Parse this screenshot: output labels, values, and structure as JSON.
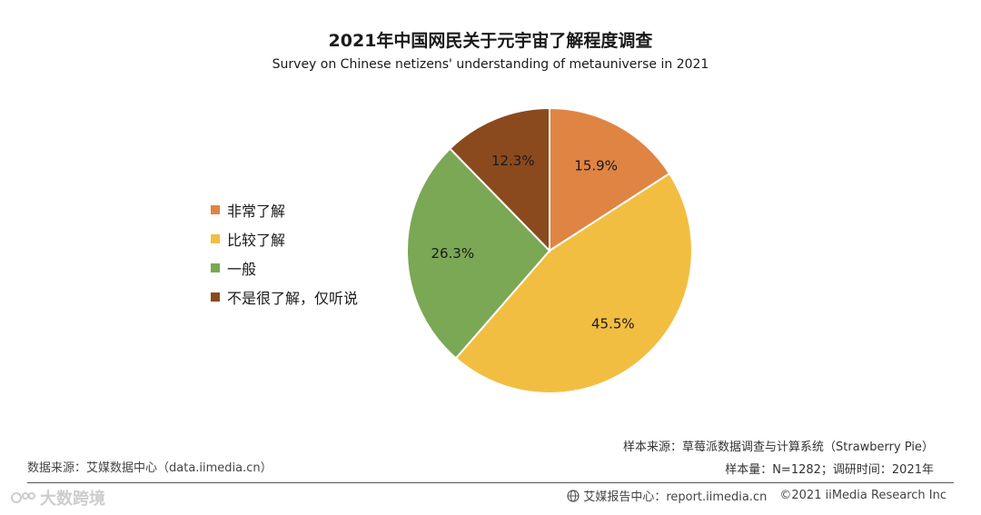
{
  "header": {
    "title": "2021年中国网民关于元宇宙了解程度调查",
    "subtitle": "Survey on Chinese netizens' understanding of metauniverse in 2021"
  },
  "chart_data": {
    "type": "pie",
    "title": "2021年中国网民关于元宇宙了解程度调查",
    "subtitle": "Survey on Chinese netizens' understanding of metauniverse in 2021",
    "legend_position": "left",
    "slices": [
      {
        "name": "非常了解",
        "value": 15.9,
        "label": "15.9%",
        "color": "#E08444"
      },
      {
        "name": "比较了解",
        "value": 45.5,
        "label": "45.5%",
        "color": "#F2BE42"
      },
      {
        "name": "一般",
        "value": 26.3,
        "label": "26.3%",
        "color": "#7BA854"
      },
      {
        "name": "不是很了解，仅听说",
        "value": 12.3,
        "label": "12.3%",
        "color": "#8B4A1E"
      }
    ]
  },
  "notes": {
    "sample_source": "样本来源：草莓派数据调查与计算系统（Strawberry Pie）",
    "sample_size": "样本量：N=1282；调研时间：2021年",
    "data_source": "数据来源：艾媒数据中心（data.iimedia.cn）"
  },
  "footer": {
    "report_center": "艾媒报告中心：report.iimedia.cn",
    "copyright": "©2021  iiMedia Research  Inc",
    "icon": "globe-icon"
  },
  "watermark": {
    "text": "大数跨境",
    "icon": "watermark-logo"
  }
}
